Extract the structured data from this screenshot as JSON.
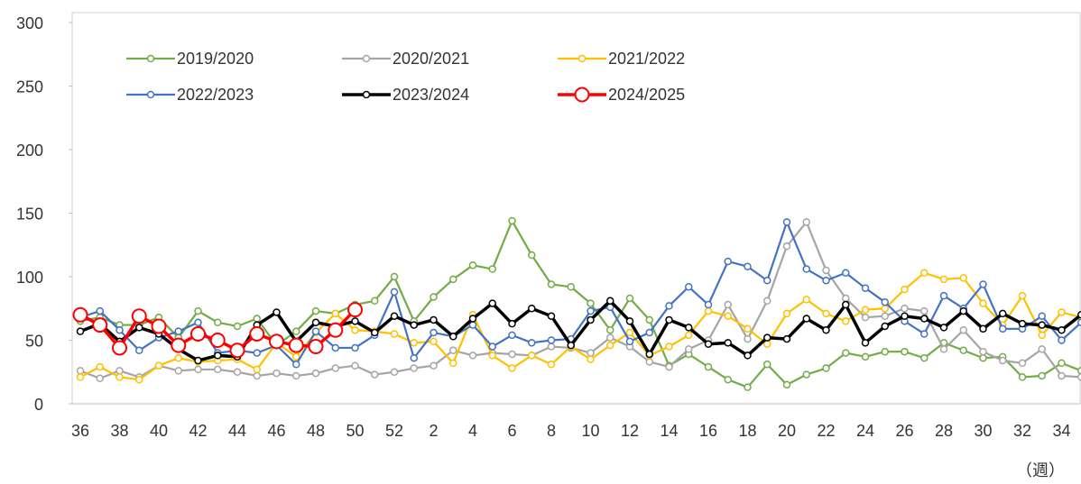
{
  "chart_data": {
    "type": "line",
    "x_label": "（週）",
    "categories": [
      36,
      null,
      38,
      null,
      40,
      null,
      42,
      null,
      44,
      null,
      46,
      null,
      48,
      null,
      50,
      null,
      52,
      null,
      2,
      null,
      4,
      null,
      6,
      null,
      8,
      null,
      10,
      null,
      12,
      null,
      14,
      null,
      16,
      null,
      18,
      null,
      20,
      null,
      22,
      null,
      24,
      null,
      26,
      null,
      28,
      null,
      30,
      null,
      32,
      null,
      34,
      null
    ],
    "ylim": [
      0,
      300
    ],
    "yticks": [
      0,
      50,
      100,
      150,
      200,
      250,
      300
    ],
    "series": [
      {
        "name": "2019/2020",
        "color": "#70ad47",
        "values": [
          65,
          68,
          62,
          62,
          68,
          52,
          73,
          64,
          61,
          67,
          46,
          57,
          73,
          71,
          78,
          81,
          100,
          65,
          84,
          98,
          109,
          106,
          144,
          117,
          94,
          92,
          79,
          58,
          83,
          66,
          30,
          39,
          29,
          19,
          13,
          31,
          15,
          23,
          28,
          40,
          37,
          41,
          41,
          36,
          48,
          42,
          36,
          37,
          21,
          22,
          32,
          26
        ]
      },
      {
        "name": "2020/2021",
        "color": "#a5a5a5",
        "values": [
          26,
          20,
          26,
          21,
          30,
          26,
          27,
          27,
          25,
          22,
          24,
          22,
          24,
          28,
          30,
          23,
          25,
          28,
          30,
          42,
          38,
          40,
          39,
          38,
          45,
          44,
          40,
          52,
          45,
          33,
          29,
          43,
          50,
          78,
          51,
          81,
          124,
          143,
          105,
          83,
          68,
          69,
          75,
          73,
          43,
          58,
          41,
          34,
          32,
          43,
          22,
          21
        ]
      },
      {
        "name": "2021/2022",
        "color": "#ffc000",
        "values": [
          21,
          29,
          21,
          19,
          30,
          36,
          33,
          34,
          35,
          27,
          48,
          37,
          56,
          71,
          58,
          57,
          55,
          48,
          49,
          32,
          70,
          38,
          28,
          38,
          31,
          45,
          35,
          46,
          56,
          38,
          45,
          54,
          73,
          69,
          59,
          47,
          71,
          82,
          71,
          65,
          74,
          75,
          90,
          103,
          98,
          99,
          79,
          62,
          85,
          54,
          72,
          68
        ]
      },
      {
        "name": "2022/2023",
        "color": "#4472c4",
        "values": [
          68,
          73,
          58,
          42,
          52,
          57,
          64,
          40,
          42,
          40,
          46,
          31,
          57,
          44,
          44,
          54,
          88,
          36,
          56,
          53,
          62,
          45,
          54,
          48,
          50,
          51,
          73,
          76,
          49,
          56,
          77,
          92,
          78,
          112,
          108,
          97,
          143,
          106,
          97,
          103,
          91,
          80,
          65,
          55,
          85,
          75,
          94,
          59,
          59,
          69,
          50,
          64
        ]
      },
      {
        "name": "2023/2024",
        "color": "#000000",
        "values": [
          57,
          63,
          49,
          60,
          55,
          43,
          34,
          38,
          37,
          62,
          72,
          49,
          64,
          61,
          65,
          56,
          69,
          62,
          66,
          53,
          67,
          79,
          63,
          75,
          69,
          46,
          66,
          81,
          65,
          39,
          66,
          60,
          47,
          48,
          38,
          52,
          51,
          67,
          58,
          78,
          48,
          61,
          69,
          67,
          60,
          73,
          59,
          71,
          63,
          62,
          58,
          70
        ]
      },
      {
        "name": "2024/2025",
        "color": "#ff0000",
        "values": [
          70,
          62,
          44,
          69,
          61,
          46,
          55,
          50,
          42,
          55,
          49,
          46,
          45,
          58,
          74,
          null,
          null,
          null,
          null,
          null,
          null,
          null,
          null,
          null,
          null,
          null,
          null,
          null,
          null,
          null,
          null,
          null,
          null,
          null,
          null,
          null,
          null,
          null,
          null,
          null,
          null,
          null,
          null,
          null,
          null,
          null,
          null,
          null,
          null,
          null,
          null,
          null
        ]
      }
    ]
  }
}
